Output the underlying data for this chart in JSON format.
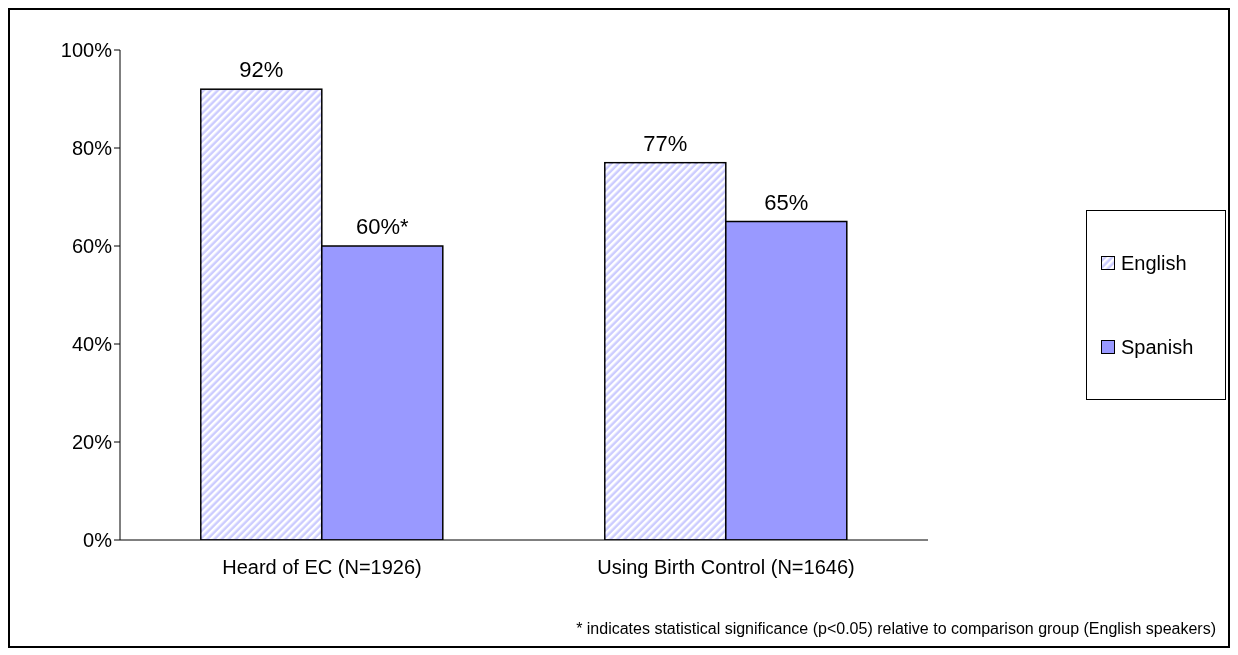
{
  "chart_data": {
    "type": "bar",
    "categories": [
      "Heard of EC (N=1926)",
      "Using Birth Control (N=1646)"
    ],
    "series": [
      {
        "name": "English",
        "color": "#ccccff",
        "values": [
          92,
          77
        ],
        "value_labels": [
          "92%",
          "77%"
        ]
      },
      {
        "name": "Spanish",
        "color": "#9999ff",
        "values": [
          60,
          65
        ],
        "value_labels": [
          "60%*",
          "65%"
        ]
      }
    ],
    "ylim": [
      0,
      100
    ],
    "yticks": [
      {
        "value": 0,
        "label": "0%"
      },
      {
        "value": 20,
        "label": "20%"
      },
      {
        "value": 40,
        "label": "40%"
      },
      {
        "value": 60,
        "label": "60%"
      },
      {
        "value": 80,
        "label": "80%"
      },
      {
        "value": 100,
        "label": "100%"
      }
    ],
    "grid": false,
    "legend": "right",
    "annotations": [
      "* indicates statistical significance (p<0.05) relative to comparison group (English speakers)"
    ]
  }
}
